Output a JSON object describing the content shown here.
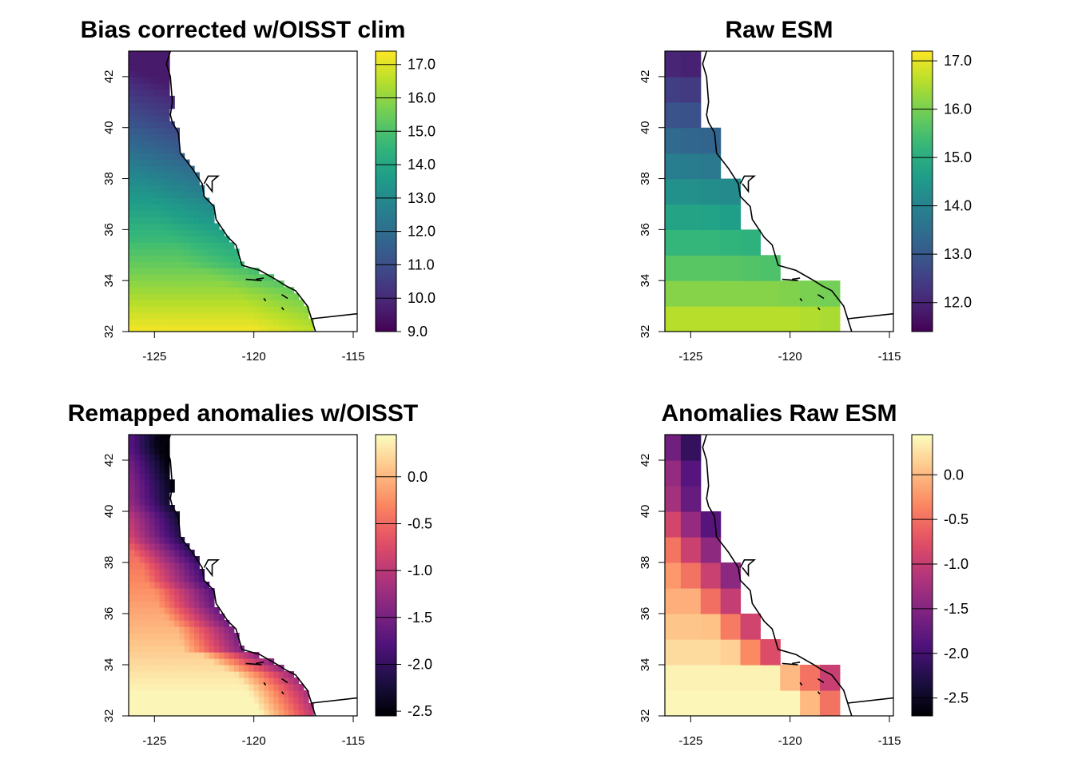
{
  "chart_data": [
    {
      "type": "heatmap",
      "title": "Bias corrected w/OISST clim",
      "grid_style": "fine",
      "palette": "viridis",
      "x_ticks": [
        "-125",
        "-120",
        "-115"
      ],
      "y_ticks": [
        "32",
        "34",
        "36",
        "38",
        "40",
        "42"
      ],
      "xlim": [
        -126.3,
        -114.8
      ],
      "ylim": [
        32,
        43
      ],
      "color_range": [
        9.0,
        17.4
      ],
      "colorbar_ticks": [
        "9.0",
        "10.0",
        "11.0",
        "12.0",
        "13.0",
        "14.0",
        "15.0",
        "16.0",
        "17.0"
      ],
      "value_model": {
        "base": 17.3,
        "lat_coef": 0.72,
        "dist_coef": 0.24,
        "min": 9.6,
        "max": 17.2,
        "ref_lat": 32
      }
    },
    {
      "type": "heatmap",
      "title": "Raw ESM",
      "grid_style": "coarse",
      "palette": "viridis",
      "x_ticks": [
        "-125",
        "-120",
        "-115"
      ],
      "y_ticks": [
        "32",
        "34",
        "36",
        "38",
        "40",
        "42"
      ],
      "xlim": [
        -126.3,
        -114.8
      ],
      "ylim": [
        32,
        43
      ],
      "color_range": [
        11.4,
        17.2
      ],
      "colorbar_ticks": [
        "12.0",
        "13.0",
        "14.0",
        "15.0",
        "16.0",
        "17.0"
      ],
      "value_model": {
        "base": 16.8,
        "lat_coef": 0.45,
        "dist_coef": 0.06,
        "min": 11.6,
        "max": 16.9,
        "ref_lat": 32
      }
    },
    {
      "type": "heatmap",
      "title": "Remapped anomalies w/OISST",
      "grid_style": "fine",
      "palette": "magma",
      "x_ticks": [
        "-125",
        "-120",
        "-115"
      ],
      "y_ticks": [
        "32",
        "34",
        "36",
        "38",
        "40",
        "42"
      ],
      "xlim": [
        -126.3,
        -114.8
      ],
      "ylim": [
        32,
        43
      ],
      "color_range": [
        -2.55,
        0.45
      ],
      "colorbar_ticks": [
        "-2.5",
        "-2.0",
        "-1.5",
        "-1.0",
        "-0.5",
        "0.0"
      ],
      "value_model": {
        "base": 0.55,
        "lat_coef": 0.16,
        "dist_coef": 0.52,
        "min": -2.5,
        "max": 0.4,
        "ref_lat": 32
      }
    },
    {
      "type": "heatmap",
      "title": "Anomalies Raw ESM",
      "grid_style": "coarse",
      "palette": "magma",
      "x_ticks": [
        "-125",
        "-120",
        "-115"
      ],
      "y_ticks": [
        "32",
        "34",
        "36",
        "38",
        "40",
        "42"
      ],
      "xlim": [
        -126.3,
        -114.8
      ],
      "ylim": [
        32,
        43
      ],
      "color_range": [
        -2.7,
        0.45
      ],
      "colorbar_ticks": [
        "-2.5",
        "-2.0",
        "-1.5",
        "-1.0",
        "-0.5",
        "0.0"
      ],
      "value_model": {
        "base": 0.6,
        "lat_coef": 0.15,
        "dist_coef": 0.48,
        "min": -2.6,
        "max": 0.4,
        "ref_lat": 32
      }
    }
  ],
  "coastline": [
    [
      -124.2,
      43.0
    ],
    [
      -124.4,
      42.5
    ],
    [
      -124.2,
      42.0
    ],
    [
      -124.1,
      41.0
    ],
    [
      -124.2,
      40.5
    ],
    [
      -124.1,
      40.2
    ],
    [
      -123.8,
      39.8
    ],
    [
      -123.7,
      39.0
    ],
    [
      -123.1,
      38.4
    ],
    [
      -122.6,
      37.8
    ],
    [
      -122.5,
      37.3
    ],
    [
      -122.0,
      36.9
    ],
    [
      -121.9,
      36.4
    ],
    [
      -121.3,
      35.7
    ],
    [
      -120.9,
      35.4
    ],
    [
      -120.6,
      34.6
    ],
    [
      -119.7,
      34.4
    ],
    [
      -118.8,
      34.0
    ],
    [
      -118.4,
      33.8
    ],
    [
      -117.9,
      33.6
    ],
    [
      -117.3,
      33.0
    ],
    [
      -117.1,
      32.5
    ],
    [
      -116.9,
      32.0
    ]
  ],
  "bay_outline": [
    [
      -122.5,
      37.8
    ],
    [
      -122.3,
      38.1
    ],
    [
      -121.8,
      38.1
    ],
    [
      -122.1,
      37.9
    ],
    [
      -122.1,
      37.5
    ],
    [
      -122.4,
      37.8
    ]
  ],
  "border_line": [
    [
      -117.1,
      32.5
    ],
    [
      -114.8,
      32.7
    ]
  ],
  "islands": [
    [
      [
        -120.4,
        34.05
      ],
      [
        -119.6,
        34.0
      ]
    ],
    [
      [
        -119.9,
        34.05
      ],
      [
        -119.5,
        34.1
      ]
    ],
    [
      [
        -118.6,
        33.45
      ],
      [
        -118.3,
        33.3
      ]
    ],
    [
      [
        -119.5,
        33.3
      ],
      [
        -119.4,
        33.2
      ]
    ],
    [
      [
        -118.6,
        32.95
      ],
      [
        -118.5,
        32.85
      ]
    ]
  ]
}
